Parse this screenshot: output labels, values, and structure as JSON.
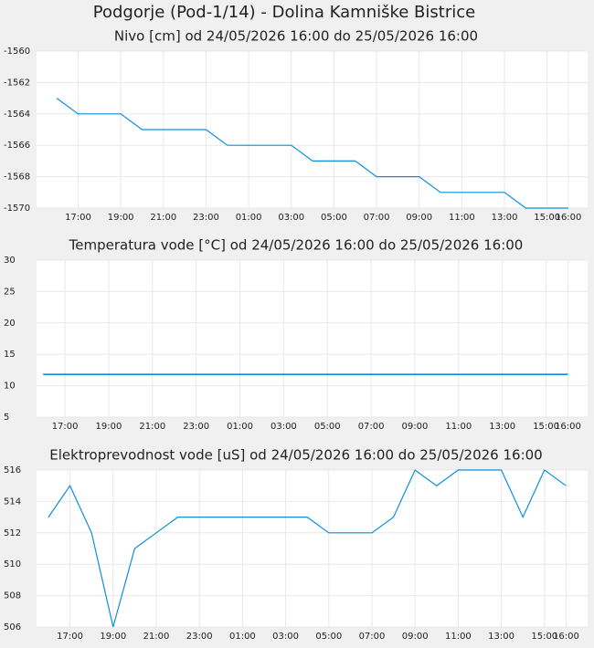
{
  "title": "Podgorje (Pod-1/14) - Dolina Kamniške Bistrice",
  "chart_data": [
    {
      "type": "line",
      "title": "Nivo [cm] od 24/05/2026 16:00 do 25/05/2026 16:00",
      "x": [
        0,
        1,
        2,
        3,
        4,
        5,
        6,
        7,
        8,
        9,
        10,
        11,
        12,
        13,
        14,
        15,
        16,
        17,
        18,
        19,
        20,
        21,
        22,
        23,
        24
      ],
      "values": [
        -1563,
        -1564,
        -1564,
        -1564,
        -1565,
        -1565,
        -1565,
        -1565,
        -1566,
        -1566,
        -1566,
        -1566,
        -1567,
        -1567,
        -1567,
        -1568,
        -1568,
        -1568,
        -1569,
        -1569,
        -1569,
        -1569,
        -1570,
        -1570,
        -1570
      ],
      "color": "#0b8fdc",
      "grid": true,
      "xlim": [
        -0.95,
        24.9
      ],
      "xticks": [
        {
          "value": 1,
          "label": "17:00"
        },
        {
          "value": 3,
          "label": "19:00"
        },
        {
          "value": 5,
          "label": "21:00"
        },
        {
          "value": 7,
          "label": "23:00"
        },
        {
          "value": 9,
          "label": "01:00"
        },
        {
          "value": 11,
          "label": "03:00"
        },
        {
          "value": 13,
          "label": "05:00"
        },
        {
          "value": 15,
          "label": "07:00"
        },
        {
          "value": 17,
          "label": "09:00"
        },
        {
          "value": 19,
          "label": "11:00"
        },
        {
          "value": 21,
          "label": "13:00"
        },
        {
          "value": 23,
          "label": "15:00"
        },
        {
          "value": 24,
          "label": "16:00"
        }
      ],
      "ylim": [
        -1570,
        -1560
      ],
      "yticks": [
        -1570,
        -1568,
        -1566,
        -1564,
        -1562,
        -1560
      ]
    },
    {
      "type": "line",
      "title": "Temperatura vode [°C] od 24/05/2026 16:00 do 25/05/2026 16:00",
      "x": [
        0,
        1,
        2,
        3,
        4,
        5,
        6,
        7,
        8,
        9,
        10,
        11,
        12,
        13,
        14,
        15,
        16,
        17,
        18,
        19,
        20,
        21,
        22,
        23,
        24
      ],
      "values": [
        11.8,
        11.8,
        11.8,
        11.8,
        11.8,
        11.8,
        11.8,
        11.8,
        11.8,
        11.8,
        11.8,
        11.8,
        11.8,
        11.8,
        11.8,
        11.8,
        11.8,
        11.8,
        11.8,
        11.8,
        11.8,
        11.8,
        11.8,
        11.8,
        11.8
      ],
      "color": "#0b8fdc",
      "grid": true,
      "xlim": [
        -0.3,
        24.9
      ],
      "xticks": [
        {
          "value": 1,
          "label": "17:00"
        },
        {
          "value": 3,
          "label": "19:00"
        },
        {
          "value": 5,
          "label": "21:00"
        },
        {
          "value": 7,
          "label": "23:00"
        },
        {
          "value": 9,
          "label": "01:00"
        },
        {
          "value": 11,
          "label": "03:00"
        },
        {
          "value": 13,
          "label": "05:00"
        },
        {
          "value": 15,
          "label": "07:00"
        },
        {
          "value": 17,
          "label": "09:00"
        },
        {
          "value": 19,
          "label": "11:00"
        },
        {
          "value": 21,
          "label": "13:00"
        },
        {
          "value": 23,
          "label": "15:00"
        },
        {
          "value": 24,
          "label": "16:00"
        }
      ],
      "ylim": [
        5,
        30
      ],
      "yticks": [
        5,
        10,
        15,
        20,
        25,
        30
      ]
    },
    {
      "type": "line",
      "title": "Elektroprevodnost vode [uS] od 24/05/2026 16:00 do 25/05/2026 16:00",
      "x": [
        0,
        1,
        2,
        3,
        4,
        5,
        6,
        7,
        8,
        9,
        10,
        11,
        12,
        13,
        14,
        15,
        16,
        17,
        18,
        19,
        20,
        21,
        22,
        23,
        24
      ],
      "values": [
        513,
        515,
        512,
        506,
        511,
        512,
        513,
        513,
        513,
        513,
        513,
        513,
        513,
        512,
        512,
        512,
        513,
        516,
        515,
        516,
        516,
        516,
        513,
        516,
        515
      ],
      "color": "#0b8fdc",
      "grid": true,
      "xlim": [
        -0.55,
        25
      ],
      "xticks": [
        {
          "value": 1,
          "label": "17:00"
        },
        {
          "value": 3,
          "label": "19:00"
        },
        {
          "value": 5,
          "label": "21:00"
        },
        {
          "value": 7,
          "label": "23:00"
        },
        {
          "value": 9,
          "label": "01:00"
        },
        {
          "value": 11,
          "label": "03:00"
        },
        {
          "value": 13,
          "label": "05:00"
        },
        {
          "value": 15,
          "label": "07:00"
        },
        {
          "value": 17,
          "label": "09:00"
        },
        {
          "value": 19,
          "label": "11:00"
        },
        {
          "value": 21,
          "label": "13:00"
        },
        {
          "value": 23,
          "label": "15:00"
        },
        {
          "value": 24,
          "label": "16:00"
        }
      ],
      "ylim": [
        506,
        516
      ],
      "yticks": [
        506,
        508,
        510,
        512,
        514,
        516
      ]
    }
  ]
}
